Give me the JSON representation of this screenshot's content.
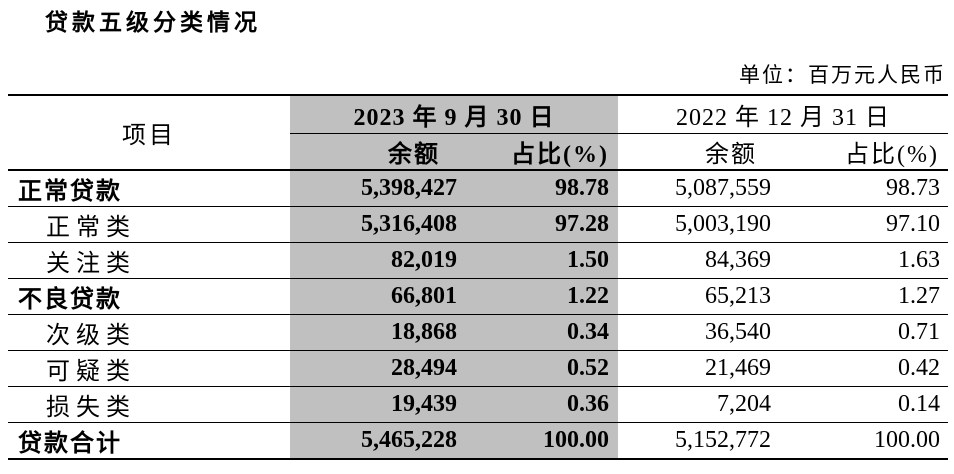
{
  "page": {
    "title": "贷款五级分类情况",
    "unit_label": "单位：百万元人民币"
  },
  "colors": {
    "highlight_bg": "#c0c0c0",
    "border": "#000000",
    "text": "#000000",
    "background": "#ffffff"
  },
  "table": {
    "item_header": "项目",
    "column_groups": [
      {
        "label": "2023 年 9 月 30 日",
        "highlighted": true
      },
      {
        "label": "2022 年 12 月 31 日",
        "highlighted": false
      }
    ],
    "sub_headers": {
      "balance": "余额",
      "ratio": "占比(%)"
    },
    "rows": [
      {
        "label": "正常贷款",
        "level": "group",
        "balance_2023": "5,398,427",
        "ratio_2023": "98.78",
        "balance_2022": "5,087,559",
        "ratio_2022": "98.73"
      },
      {
        "label": "正常类",
        "level": "sub",
        "balance_2023": "5,316,408",
        "ratio_2023": "97.28",
        "balance_2022": "5,003,190",
        "ratio_2022": "97.10"
      },
      {
        "label": "关注类",
        "level": "sub",
        "balance_2023": "82,019",
        "ratio_2023": "1.50",
        "balance_2022": "84,369",
        "ratio_2022": "1.63"
      },
      {
        "label": "不良贷款",
        "level": "group",
        "balance_2023": "66,801",
        "ratio_2023": "1.22",
        "balance_2022": "65,213",
        "ratio_2022": "1.27"
      },
      {
        "label": "次级类",
        "level": "sub",
        "balance_2023": "18,868",
        "ratio_2023": "0.34",
        "balance_2022": "36,540",
        "ratio_2022": "0.71"
      },
      {
        "label": "可疑类",
        "level": "sub",
        "balance_2023": "28,494",
        "ratio_2023": "0.52",
        "balance_2022": "21,469",
        "ratio_2022": "0.42"
      },
      {
        "label": "损失类",
        "level": "sub",
        "balance_2023": "19,439",
        "ratio_2023": "0.36",
        "balance_2022": "7,204",
        "ratio_2022": "0.14"
      },
      {
        "label": "贷款合计",
        "level": "total",
        "balance_2023": "5,465,228",
        "ratio_2023": "100.00",
        "balance_2022": "5,152,772",
        "ratio_2022": "100.00"
      }
    ]
  }
}
